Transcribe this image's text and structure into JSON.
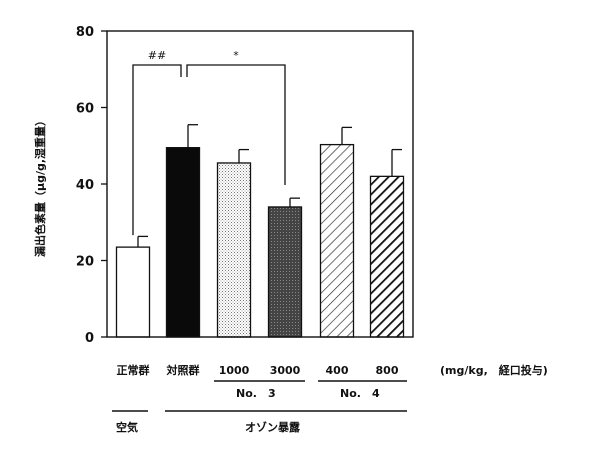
{
  "chart_data": {
    "type": "bar",
    "ylabel": "漏出色素量（μg/g,湿重量）",
    "ylim": [
      0,
      80
    ],
    "yticks": [
      "0",
      "20",
      "40",
      "60",
      "80"
    ],
    "categories": [
      "正常群",
      "対照群",
      "1000",
      "3000",
      "400",
      "800"
    ],
    "values": [
      23.5,
      49.5,
      45.5,
      34.0,
      50.3,
      42.0
    ],
    "errors": [
      2.8,
      6.0,
      3.5,
      2.3,
      4.5,
      7.0
    ],
    "patterns": [
      "white",
      "black",
      "dots",
      "dark",
      "sparse-diagonal",
      "dense-diagonal"
    ],
    "unit_label": "(mg/kg,　経口投与)",
    "groups": [
      {
        "label": "No.　3"
      },
      {
        "label": "No.　4"
      }
    ],
    "exposure": [
      {
        "label": "空気"
      },
      {
        "label": "オゾン暴露"
      }
    ],
    "significance": [
      {
        "label": "##"
      },
      {
        "label": "*"
      }
    ]
  }
}
